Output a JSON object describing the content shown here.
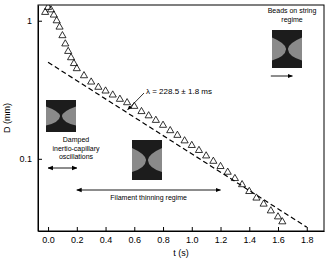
{
  "chart_data": {
    "type": "scatter",
    "x_label": "t (s)",
    "y_label": "D (mm)",
    "log": "y",
    "xlim": [
      -0.07,
      1.92
    ],
    "ylim": [
      0.03,
      1.3
    ],
    "xticks": [
      {
        "value": 0,
        "label": "0.0"
      },
      0.2,
      0.4,
      0.6,
      0.8,
      {
        "value": 1,
        "label": "1.0"
      },
      1.2,
      1.4,
      1.6,
      1.8
    ],
    "yticks": [
      0.1,
      1
    ],
    "series": [
      {
        "type": "scatter",
        "marker": "triangle-open",
        "color": "#000000",
        "x": [
          -0.02,
          0.0,
          0.02,
          0.04,
          0.06,
          0.08,
          0.1,
          0.12,
          0.14,
          0.16,
          0.18,
          0.2,
          0.25,
          0.3,
          0.35,
          0.4,
          0.45,
          0.5,
          0.55,
          0.6,
          0.65,
          0.7,
          0.75,
          0.8,
          0.85,
          0.9,
          0.95,
          1.0,
          1.05,
          1.1,
          1.15,
          1.2,
          1.25,
          1.3,
          1.35,
          1.4,
          1.45,
          1.5,
          1.55,
          1.6,
          1.63
        ],
        "values": [
          1.15,
          1.25,
          1.2,
          1.1,
          1.0,
          0.9,
          0.78,
          0.68,
          0.6,
          0.54,
          0.49,
          0.45,
          0.4,
          0.36,
          0.33,
          0.31,
          0.29,
          0.27,
          0.255,
          0.24,
          0.22,
          0.205,
          0.19,
          0.175,
          0.16,
          0.148,
          0.135,
          0.125,
          0.115,
          0.105,
          0.096,
          0.088,
          0.08,
          0.072,
          0.065,
          0.058,
          0.052,
          0.047,
          0.042,
          0.038,
          0.035
        ]
      },
      {
        "type": "line",
        "line_style": "dashed",
        "color": "#000000",
        "x": [
          0.0,
          1.8
        ],
        "values": [
          0.5,
          0.032
        ]
      }
    ],
    "annotations": [
      {
        "text": "Damped inertio-capillary oscillations",
        "span": [
          0.0,
          0.2
        ]
      },
      {
        "text": "Filament thinning regime",
        "span": [
          0.2,
          1.2
        ]
      },
      {
        "text": "Beads on string regime",
        "span": [
          1.55,
          1.7
        ]
      },
      {
        "text": "λ = 228.5 ± 1.8 ms"
      }
    ]
  }
}
